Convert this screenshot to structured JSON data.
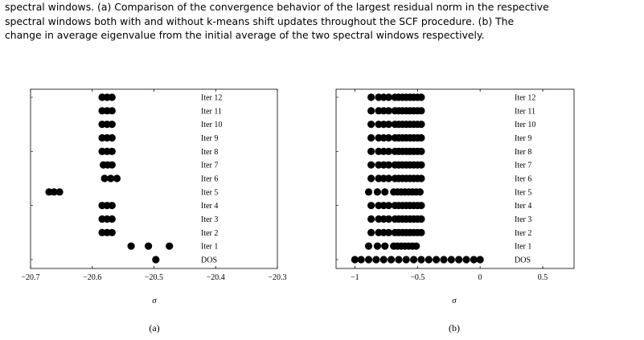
{
  "caption": {
    "line1": "spectral windows. (a) Comparison of the convergence behavior of the largest residual norm in the respective",
    "line2": "spectral windows both with and without k-means shift updates throughout the SCF procedure. (b) The",
    "line3": "change in average eigenvalue from the initial average of the two spectral windows respectively."
  },
  "chart_data": [
    {
      "type": "scatter",
      "subfigure_label": "(a)",
      "xlabel": "σ",
      "xlim": [
        -20.7,
        -20.3
      ],
      "xticks": [
        -20.7,
        -20.6,
        -20.5,
        -20.4,
        -20.3
      ],
      "xtick_labels": [
        "−20.7",
        "−20.6",
        "−20.5",
        "−20.4",
        "−20.3"
      ],
      "grid": false,
      "rows": [
        {
          "label": "Iter 12",
          "x": [
            -20.584,
            -20.576,
            -20.568
          ]
        },
        {
          "label": "Iter 11",
          "x": [
            -20.584,
            -20.576,
            -20.568
          ]
        },
        {
          "label": "Iter 10",
          "x": [
            -20.584,
            -20.576,
            -20.568
          ]
        },
        {
          "label": "Iter 9",
          "x": [
            -20.584,
            -20.576,
            -20.568
          ]
        },
        {
          "label": "Iter 8",
          "x": [
            -20.584,
            -20.576,
            -20.568
          ]
        },
        {
          "label": "Iter 7",
          "x": [
            -20.582,
            -20.575,
            -20.568
          ]
        },
        {
          "label": "Iter 6",
          "x": [
            -20.58,
            -20.57,
            -20.56
          ]
        },
        {
          "label": "Iter 5",
          "x": [
            -20.67,
            -20.662,
            -20.653
          ]
        },
        {
          "label": "Iter 4",
          "x": [
            -20.584,
            -20.576,
            -20.568
          ]
        },
        {
          "label": "Iter 3",
          "x": [
            -20.584,
            -20.576,
            -20.568
          ]
        },
        {
          "label": "Iter 2",
          "x": [
            -20.584,
            -20.576,
            -20.568
          ]
        },
        {
          "label": "Iter 1",
          "x": [
            -20.537,
            -20.509,
            -20.475
          ]
        },
        {
          "label": "DOS",
          "x": [
            -20.497
          ]
        }
      ]
    },
    {
      "type": "scatter",
      "subfigure_label": "(b)",
      "xlabel": "σ",
      "xlim": [
        -1.15,
        0.75
      ],
      "xticks": [
        -1,
        -0.5,
        0,
        0.5
      ],
      "xtick_labels": [
        "−1",
        "−0.5",
        "0",
        "0.5"
      ],
      "grid": false,
      "rows": [
        {
          "label": "Iter 12",
          "x": [
            -0.87,
            -0.81,
            -0.77,
            -0.73,
            -0.68,
            -0.65,
            -0.62,
            -0.59,
            -0.56,
            -0.53,
            -0.5,
            -0.47
          ]
        },
        {
          "label": "Iter 11",
          "x": [
            -0.87,
            -0.81,
            -0.77,
            -0.73,
            -0.68,
            -0.65,
            -0.62,
            -0.59,
            -0.56,
            -0.53,
            -0.5,
            -0.47
          ]
        },
        {
          "label": "Iter 10",
          "x": [
            -0.87,
            -0.81,
            -0.77,
            -0.73,
            -0.68,
            -0.65,
            -0.62,
            -0.59,
            -0.56,
            -0.53,
            -0.5,
            -0.47
          ]
        },
        {
          "label": "Iter 9",
          "x": [
            -0.87,
            -0.81,
            -0.77,
            -0.73,
            -0.68,
            -0.65,
            -0.62,
            -0.59,
            -0.56,
            -0.53,
            -0.5,
            -0.47
          ]
        },
        {
          "label": "Iter 8",
          "x": [
            -0.87,
            -0.81,
            -0.77,
            -0.73,
            -0.68,
            -0.65,
            -0.62,
            -0.59,
            -0.56,
            -0.53,
            -0.5,
            -0.47
          ]
        },
        {
          "label": "Iter 7",
          "x": [
            -0.87,
            -0.81,
            -0.77,
            -0.73,
            -0.68,
            -0.65,
            -0.62,
            -0.59,
            -0.56,
            -0.53,
            -0.5,
            -0.47
          ]
        },
        {
          "label": "Iter 6",
          "x": [
            -0.87,
            -0.81,
            -0.77,
            -0.73,
            -0.68,
            -0.65,
            -0.62,
            -0.59,
            -0.56,
            -0.53,
            -0.5,
            -0.47
          ]
        },
        {
          "label": "Iter 5",
          "x": [
            -0.89,
            -0.82,
            -0.76,
            -0.69,
            -0.66,
            -0.63,
            -0.6,
            -0.57,
            -0.54,
            -0.51,
            -0.48
          ]
        },
        {
          "label": "Iter 4",
          "x": [
            -0.87,
            -0.81,
            -0.77,
            -0.73,
            -0.68,
            -0.65,
            -0.62,
            -0.59,
            -0.56,
            -0.53,
            -0.5,
            -0.47
          ]
        },
        {
          "label": "Iter 3",
          "x": [
            -0.87,
            -0.81,
            -0.77,
            -0.73,
            -0.68,
            -0.65,
            -0.62,
            -0.59,
            -0.56,
            -0.53,
            -0.5,
            -0.47
          ]
        },
        {
          "label": "Iter 2",
          "x": [
            -0.87,
            -0.81,
            -0.77,
            -0.73,
            -0.68,
            -0.65,
            -0.62,
            -0.59,
            -0.56,
            -0.53,
            -0.5,
            -0.47
          ]
        },
        {
          "label": "Iter 1",
          "x": [
            -0.89,
            -0.82,
            -0.76,
            -0.69,
            -0.66,
            -0.63,
            -0.6,
            -0.57,
            -0.54,
            -0.51
          ]
        },
        {
          "label": "DOS",
          "x": [
            -1.0,
            -0.95,
            -0.89,
            -0.83,
            -0.77,
            -0.71,
            -0.65,
            -0.59,
            -0.53,
            -0.47,
            -0.41,
            -0.35,
            -0.29,
            -0.23,
            -0.17,
            -0.11,
            -0.05,
            0.0
          ]
        }
      ]
    }
  ],
  "colors": {
    "marker": "#000000",
    "axis": "#000000"
  }
}
